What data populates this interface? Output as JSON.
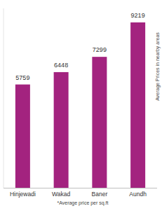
{
  "chart_data": {
    "type": "bar",
    "categories": [
      "Hinjewadi",
      "Wakad",
      "Baner",
      "Aundh"
    ],
    "values": [
      5759,
      6448,
      7299,
      9219
    ],
    "color": "#a3237f",
    "ylim": [
      0,
      10000
    ],
    "ylabel": "Average Prices in nearby areas",
    "annotations": [
      "*Average price per sq.ft"
    ],
    "data_labels": true,
    "tick_labels": "x",
    "grid": false
  }
}
